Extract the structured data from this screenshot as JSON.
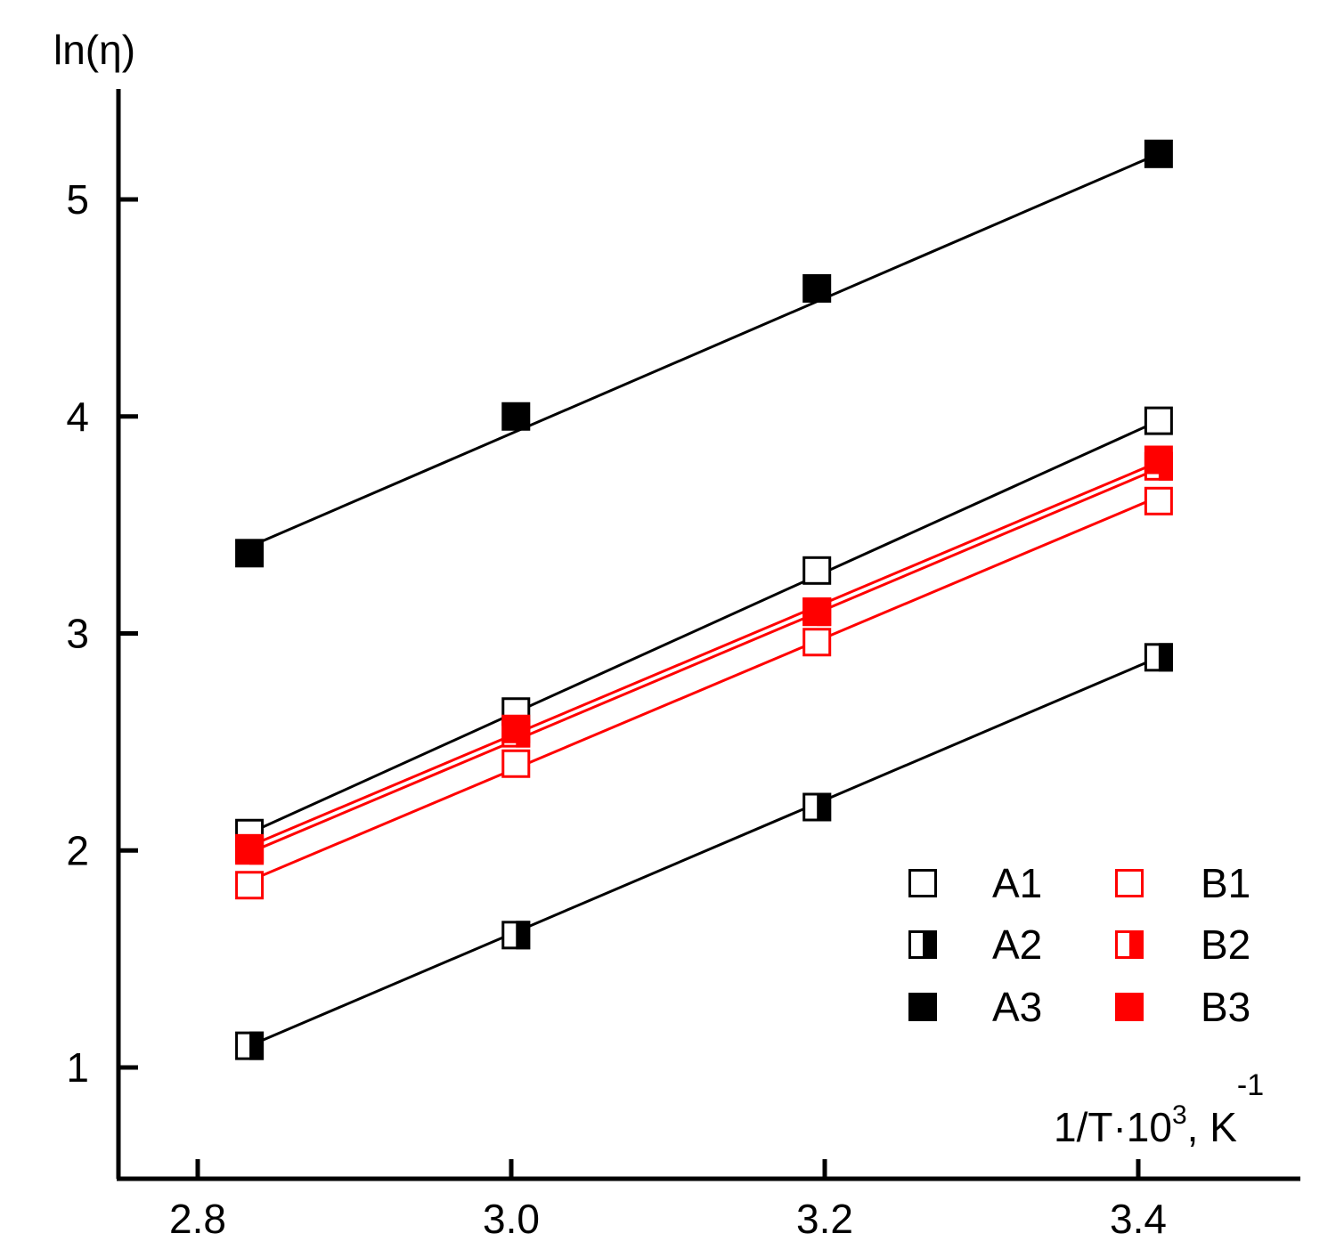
{
  "chart_data": {
    "type": "scatter",
    "title": "",
    "ylabel": "ln(η)",
    "xlabel": {
      "main": "1/T·10",
      "exp": "3",
      "unit": ", K",
      "unit_exp": "-1"
    },
    "xlim": [
      2.75,
      3.5
    ],
    "ylim": [
      0.5,
      5.5
    ],
    "x_ticks": [
      2.8,
      3.0,
      3.2,
      3.4
    ],
    "x_tick_labels": [
      "2.8",
      "3.0",
      "3.2",
      "3.4"
    ],
    "y_ticks": [
      1,
      2,
      3,
      4,
      5
    ],
    "y_tick_labels": [
      "1",
      "2",
      "3",
      "4",
      "5"
    ],
    "grid": false,
    "legend_position": "bottom-right",
    "x": [
      2.833,
      3.003,
      3.195,
      3.413
    ],
    "series": [
      {
        "name": "A1",
        "marker": "open",
        "color": "#000000",
        "values": [
          2.08,
          2.64,
          3.29,
          3.98
        ],
        "fit": [
          2.08,
          3.98
        ]
      },
      {
        "name": "A2",
        "marker": "half",
        "color": "#000000",
        "values": [
          1.1,
          1.61,
          2.2,
          2.89
        ],
        "fit": [
          1.1,
          2.89
        ]
      },
      {
        "name": "A3",
        "marker": "filled",
        "color": "#000000",
        "values": [
          3.37,
          4.0,
          4.59,
          5.21
        ],
        "fit": [
          3.4,
          5.21
        ]
      },
      {
        "name": "B1",
        "marker": "open",
        "color": "#ff0000",
        "values": [
          1.84,
          2.4,
          2.96,
          3.61
        ],
        "fit": [
          1.86,
          3.63
        ]
      },
      {
        "name": "B2",
        "marker": "half",
        "color": "#ff0000",
        "values": [
          2.0,
          2.54,
          3.1,
          3.77
        ],
        "fit": [
          1.99,
          3.76
        ]
      },
      {
        "name": "B3",
        "marker": "filled",
        "color": "#ff0000",
        "values": [
          2.01,
          2.56,
          3.1,
          3.8
        ],
        "fit": [
          2.02,
          3.79
        ]
      }
    ]
  }
}
